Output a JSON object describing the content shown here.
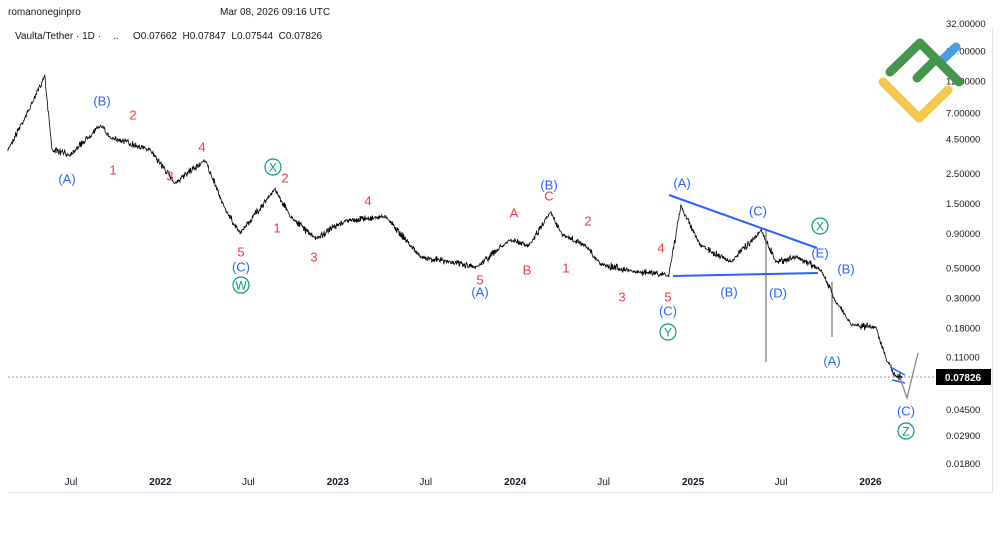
{
  "header": {
    "author": "romanoneginpro",
    "timestamp": "Mar 08, 2026 09:16 UTC",
    "symbol": "Vaulta/Tether · 1D ·",
    "dots": "..",
    "ohlc": "O0.07662  H0.07847  L0.07544  C0.07826"
  },
  "colors": {
    "price_line": "#000000",
    "wave_red": "#f23645",
    "wave_blue": "#2962ff",
    "wave_green": "#089981",
    "trendline": "#2962ff",
    "projection": "#888888",
    "logo_green": "#43964b",
    "logo_yellow": "#f2c94c",
    "logo_blue": "#4a9fe0"
  },
  "chart_data": {
    "type": "line",
    "scale": "log",
    "current_price": "0.07826",
    "y_ticks": [
      "32.00000",
      "20.00000",
      "12.00000",
      "7.00000",
      "4.50000",
      "2.50000",
      "1.50000",
      "0.90000",
      "0.50000",
      "0.30000",
      "0.18000",
      "0.11000",
      "0.04500",
      "0.02900",
      "0.01800"
    ],
    "x_ticks": [
      "Jul",
      "2022",
      "Jul",
      "2023",
      "Jul",
      "2024",
      "Jul",
      "2025",
      "Jul",
      "2026"
    ],
    "series": [
      {
        "points": [
          [
            "2021-02-21",
            3.7
          ],
          [
            "2021-04-08",
            7.6
          ],
          [
            "2021-05-08",
            13.1
          ],
          [
            "2021-05-23",
            3.7
          ],
          [
            "2021-06-29",
            3.4
          ],
          [
            "2021-08-30",
            5.6
          ],
          [
            "2021-09-19",
            4.6
          ],
          [
            "2021-12-11",
            3.7
          ],
          [
            "2022-01-31",
            2.1
          ],
          [
            "2022-04-03",
            3.1
          ],
          [
            "2022-05-14",
            1.35
          ],
          [
            "2022-06-14",
            0.9
          ],
          [
            "2022-08-25",
            1.9
          ],
          [
            "2022-09-25",
            1.2
          ],
          [
            "2022-11-16",
            0.82
          ],
          [
            "2023-01-16",
            1.1
          ],
          [
            "2023-04-09",
            1.2
          ],
          [
            "2023-06-20",
            0.6
          ],
          [
            "2023-08-21",
            0.55
          ],
          [
            "2023-10-11",
            0.5
          ],
          [
            "2023-12-22",
            0.8
          ],
          [
            "2024-01-28",
            0.72
          ],
          [
            "2024-03-14",
            1.3
          ],
          [
            "2024-04-07",
            0.87
          ],
          [
            "2024-05-25",
            0.72
          ],
          [
            "2024-06-25",
            0.53
          ],
          [
            "2024-08-26",
            0.47
          ],
          [
            "2024-11-12",
            0.44
          ],
          [
            "2024-12-07",
            1.42
          ],
          [
            "2025-01-17",
            0.72
          ],
          [
            "2025-03-20",
            0.55
          ],
          [
            "2025-05-21",
            0.94
          ],
          [
            "2025-06-21",
            0.55
          ],
          [
            "2025-08-01",
            0.6
          ],
          [
            "2025-09-21",
            0.48
          ],
          [
            "2025-10-22",
            0.28
          ],
          [
            "2025-11-22",
            0.19
          ],
          [
            "2026-01-13",
            0.18
          ],
          [
            "2026-02-02",
            0.105
          ],
          [
            "2026-02-23",
            0.078
          ],
          [
            "2026-03-08",
            0.07826
          ]
        ]
      }
    ],
    "annotations": [
      {
        "text": "(A)",
        "color": "blue"
      },
      {
        "text": "(B)",
        "color": "blue"
      },
      {
        "text": "1",
        "color": "red"
      },
      {
        "text": "2",
        "color": "red"
      },
      {
        "text": "3",
        "color": "red"
      },
      {
        "text": "4",
        "color": "red"
      },
      {
        "text": "5",
        "color": "red"
      },
      {
        "text": "(C)",
        "color": "blue"
      },
      {
        "text": "W",
        "color": "green",
        "circled": true
      },
      {
        "text": "X",
        "color": "green",
        "circled": true
      },
      {
        "text": "2",
        "color": "red"
      },
      {
        "text": "1",
        "color": "red"
      },
      {
        "text": "3",
        "color": "red"
      },
      {
        "text": "4",
        "color": "red"
      },
      {
        "text": "5",
        "color": "red"
      },
      {
        "text": "(A)",
        "color": "blue"
      },
      {
        "text": "A",
        "color": "red"
      },
      {
        "text": "C",
        "color": "red"
      },
      {
        "text": "(B)",
        "color": "blue"
      },
      {
        "text": "B",
        "color": "red"
      },
      {
        "text": "1",
        "color": "red"
      },
      {
        "text": "2",
        "color": "red"
      },
      {
        "text": "3",
        "color": "red"
      },
      {
        "text": "4",
        "color": "red"
      },
      {
        "text": "5",
        "color": "red"
      },
      {
        "text": "(C)",
        "color": "blue"
      },
      {
        "text": "Y",
        "color": "green",
        "circled": true
      },
      {
        "text": "(A)",
        "color": "blue"
      },
      {
        "text": "(C)",
        "color": "blue"
      },
      {
        "text": "X",
        "color": "green",
        "circled": true
      },
      {
        "text": "(E)",
        "color": "blue"
      },
      {
        "text": "(B)",
        "color": "blue"
      },
      {
        "text": "(B)",
        "color": "blue"
      },
      {
        "text": "(D)",
        "color": "blue"
      },
      {
        "text": "(A)",
        "color": "blue"
      },
      {
        "text": "(C)",
        "color": "blue"
      },
      {
        "text": "Z",
        "color": "green",
        "circled": true
      }
    ]
  }
}
